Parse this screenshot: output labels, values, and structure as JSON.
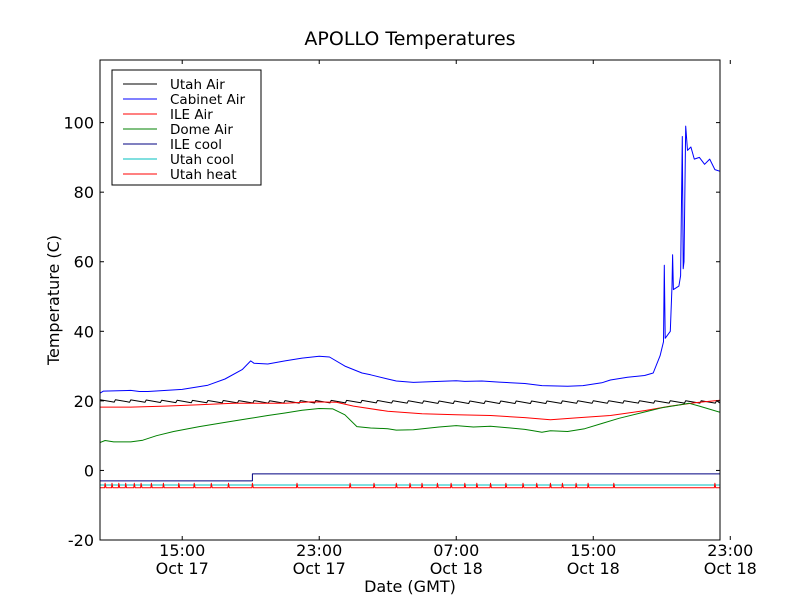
{
  "chart_data": {
    "type": "line",
    "title": "APOLLO Temperatures",
    "xlabel": "Date (GMT)",
    "ylabel": "Temperature (C)",
    "x_unit": "hours since Oct 17 00:00 GMT",
    "xlim": [
      10.2,
      46.4
    ],
    "ylim": [
      -20,
      118
    ],
    "y_ticks": [
      -20,
      0,
      20,
      40,
      60,
      80,
      100
    ],
    "x_ticks": [
      {
        "x": 15,
        "line1": "15:00",
        "line2": "Oct 17"
      },
      {
        "x": 23,
        "line1": "23:00",
        "line2": "Oct 17"
      },
      {
        "x": 31,
        "line1": "07:00",
        "line2": "Oct 18"
      },
      {
        "x": 39,
        "line1": "15:00",
        "line2": "Oct 18"
      },
      {
        "x": 47,
        "line1": "23:00",
        "line2": "Oct 18"
      }
    ],
    "legend_position": "top-left",
    "series": [
      {
        "name": "Utah Air",
        "color": "#000000",
        "sawtooth": {
          "amplitude": 0.7,
          "period": 0.9
        },
        "points": [
          [
            10.2,
            20.0
          ],
          [
            15,
            19.8
          ],
          [
            20,
            19.7
          ],
          [
            25,
            19.8
          ],
          [
            30,
            19.6
          ],
          [
            35,
            19.6
          ],
          [
            40,
            19.7
          ],
          [
            46.4,
            19.7
          ]
        ]
      },
      {
        "name": "Cabinet Air",
        "color": "#0000ff",
        "points": [
          [
            10.2,
            22.2
          ],
          [
            10.4,
            22.8
          ],
          [
            12,
            23.0
          ],
          [
            12.5,
            22.7
          ],
          [
            13,
            22.7
          ],
          [
            15,
            23.3
          ],
          [
            16.5,
            24.5
          ],
          [
            17.5,
            26.3
          ],
          [
            18.5,
            29.0
          ],
          [
            19.0,
            31.5
          ],
          [
            19.2,
            30.8
          ],
          [
            20,
            30.6
          ],
          [
            21,
            31.5
          ],
          [
            22,
            32.3
          ],
          [
            23,
            32.8
          ],
          [
            23.6,
            32.6
          ],
          [
            24.5,
            30.0
          ],
          [
            25.5,
            28.0
          ],
          [
            26,
            27.5
          ],
          [
            27,
            26.3
          ],
          [
            27.5,
            25.7
          ],
          [
            28.5,
            25.3
          ],
          [
            30,
            25.6
          ],
          [
            31,
            25.8
          ],
          [
            31.5,
            25.6
          ],
          [
            32.5,
            25.7
          ],
          [
            33.5,
            25.4
          ],
          [
            35,
            25.0
          ],
          [
            36,
            24.4
          ],
          [
            37.5,
            24.2
          ],
          [
            38.4,
            24.4
          ],
          [
            39.5,
            25.2
          ],
          [
            40,
            26.0
          ],
          [
            41,
            26.8
          ],
          [
            42,
            27.3
          ],
          [
            42.5,
            28.0
          ],
          [
            42.9,
            33.0
          ],
          [
            43.1,
            37.0
          ],
          [
            43.15,
            59.0
          ],
          [
            43.2,
            38.0
          ],
          [
            43.5,
            40.0
          ],
          [
            43.6,
            53.0
          ],
          [
            43.63,
            62.0
          ],
          [
            43.68,
            52.0
          ],
          [
            44.0,
            53.0
          ],
          [
            44.1,
            56.0
          ],
          [
            44.2,
            96.0
          ],
          [
            44.25,
            58.0
          ],
          [
            44.3,
            60.0
          ],
          [
            44.4,
            99.0
          ],
          [
            44.5,
            92.0
          ],
          [
            44.7,
            93.0
          ],
          [
            44.9,
            89.5
          ],
          [
            45.2,
            90.0
          ],
          [
            45.5,
            88.0
          ],
          [
            45.8,
            89.5
          ],
          [
            46.1,
            86.5
          ],
          [
            46.4,
            86.0
          ]
        ]
      },
      {
        "name": "ILE Air",
        "color": "#ff0000",
        "points": [
          [
            10.2,
            18.2
          ],
          [
            12,
            18.2
          ],
          [
            14,
            18.5
          ],
          [
            16,
            18.9
          ],
          [
            18,
            19.3
          ],
          [
            21,
            19.3
          ],
          [
            22.5,
            19.7
          ],
          [
            24,
            19.6
          ],
          [
            25,
            18.5
          ],
          [
            27,
            17.0
          ],
          [
            29,
            16.3
          ],
          [
            31,
            16.0
          ],
          [
            33,
            15.8
          ],
          [
            35,
            15.2
          ],
          [
            36.5,
            14.6
          ],
          [
            38,
            15.1
          ],
          [
            40,
            15.8
          ],
          [
            42,
            17.2
          ],
          [
            43.5,
            18.5
          ],
          [
            45,
            19.5
          ],
          [
            46.4,
            20.2
          ]
        ]
      },
      {
        "name": "Dome Air",
        "color": "#008000",
        "points": [
          [
            10.2,
            8.0
          ],
          [
            10.5,
            8.6
          ],
          [
            11,
            8.2
          ],
          [
            12,
            8.2
          ],
          [
            12.7,
            8.7
          ],
          [
            13.5,
            10.0
          ],
          [
            14.5,
            11.2
          ],
          [
            16,
            12.6
          ],
          [
            17.5,
            13.8
          ],
          [
            19,
            15.0
          ],
          [
            20,
            15.8
          ],
          [
            21,
            16.5
          ],
          [
            22,
            17.3
          ],
          [
            23,
            17.8
          ],
          [
            23.8,
            17.7
          ],
          [
            24.5,
            16.0
          ],
          [
            25.2,
            12.6
          ],
          [
            26,
            12.2
          ],
          [
            27,
            12.0
          ],
          [
            27.5,
            11.6
          ],
          [
            28.5,
            11.7
          ],
          [
            30,
            12.5
          ],
          [
            31,
            12.9
          ],
          [
            32,
            12.5
          ],
          [
            33,
            12.7
          ],
          [
            34,
            12.3
          ],
          [
            35,
            11.8
          ],
          [
            35.5,
            11.4
          ],
          [
            36,
            11.0
          ],
          [
            36.5,
            11.4
          ],
          [
            37.5,
            11.2
          ],
          [
            38.5,
            12.0
          ],
          [
            39.5,
            13.5
          ],
          [
            40.5,
            15.0
          ],
          [
            42,
            16.8
          ],
          [
            43,
            18.0
          ],
          [
            44,
            18.8
          ],
          [
            44.6,
            19.3
          ],
          [
            45.2,
            18.5
          ],
          [
            46.4,
            16.7
          ]
        ]
      },
      {
        "name": "ILE cool",
        "color": "#000080",
        "points": [
          [
            10.2,
            -3.0
          ],
          [
            19.1,
            -3.0
          ],
          [
            19.1,
            -1.0
          ],
          [
            46.4,
            -1.0
          ]
        ]
      },
      {
        "name": "Utah cool",
        "color": "#00bfbf",
        "points": [
          [
            10.2,
            -4.2
          ],
          [
            46.4,
            -4.2
          ]
        ]
      },
      {
        "name": "Utah heat",
        "color": "#ff0000",
        "base": -5.0,
        "spike_height": 1.3,
        "spikes": [
          10.5,
          10.9,
          11.3,
          11.7,
          12.2,
          12.6,
          13.2,
          13.9,
          14.8,
          15.7,
          16.7,
          17.7,
          19.1,
          21.7,
          24.8,
          26.2,
          27.5,
          28.3,
          29.0,
          29.9,
          30.7,
          31.5,
          32.2,
          33.0,
          33.9,
          34.9,
          35.7,
          36.5,
          37.2,
          38.0,
          38.7,
          40.2,
          46.1
        ]
      }
    ]
  }
}
